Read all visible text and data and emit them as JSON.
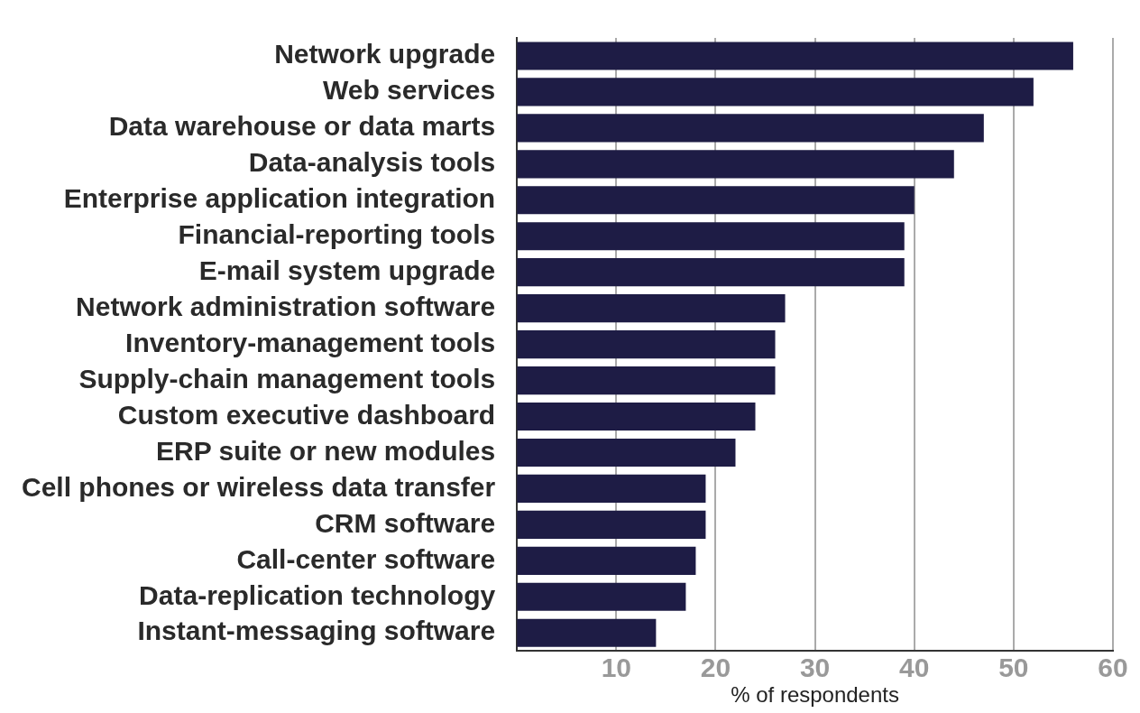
{
  "chart_data": {
    "type": "bar",
    "orientation": "horizontal",
    "xlabel": "% of respondents",
    "categories": [
      "Network upgrade",
      "Web services",
      "Data warehouse or data marts",
      "Data-analysis tools",
      "Enterprise application integration",
      "Financial-reporting tools",
      "E-mail system upgrade",
      "Network administration software",
      "Inventory-management tools",
      "Supply-chain management tools",
      "Custom executive dashboard",
      "ERP suite or new modules",
      "Cell phones or wireless data transfer",
      "CRM software",
      "Call-center software",
      "Data-replication technology",
      "Instant-messaging software"
    ],
    "values": [
      56,
      52,
      47,
      44,
      40,
      39,
      39,
      27,
      26,
      26,
      24,
      22,
      19,
      19,
      18,
      17,
      14
    ],
    "color": "#1e1c45",
    "xlim": [
      0,
      60
    ],
    "xticks": [
      10,
      20,
      30,
      40,
      50,
      60
    ],
    "grid": "x"
  }
}
